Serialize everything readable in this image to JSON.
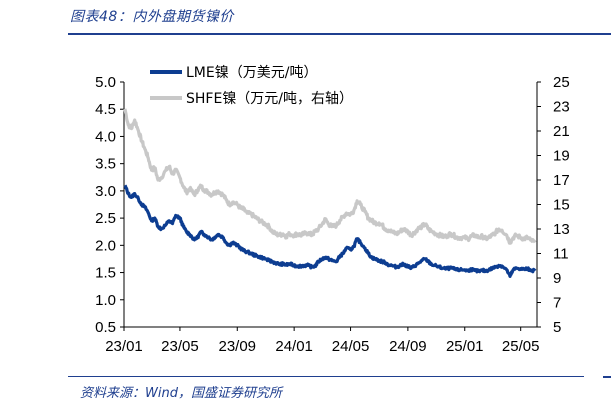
{
  "figure_title": "图表48：内外盘期货镍价",
  "source": "资料来源：Wind，国盛证券研究所",
  "colors": {
    "accent": "#1f3f8f",
    "lme": "#0d3d91",
    "shfe": "#c8c8c8"
  },
  "chart_data": {
    "type": "line",
    "x_tick_labels": [
      "23/01",
      "23/05",
      "23/09",
      "24/01",
      "24/05",
      "24/09",
      "25/01",
      "25/05"
    ],
    "xlim": [
      "2023-01",
      "2025-06"
    ],
    "y_left": {
      "label": "LME镍（万美元/吨）",
      "ylim": [
        0.5,
        5.0
      ],
      "ticks": [
        "0.5",
        "1.0",
        "1.5",
        "2.0",
        "2.5",
        "3.0",
        "3.5",
        "4.0",
        "4.5",
        "5.0"
      ]
    },
    "y_right": {
      "label": "SHFE镍（万元/吨，右轴）",
      "ylim": [
        5,
        25
      ],
      "ticks": [
        "5",
        "7",
        "9",
        "11",
        "13",
        "15",
        "17",
        "19",
        "21",
        "23",
        "25"
      ]
    },
    "legend_position": "top-left",
    "grid": false,
    "series": [
      {
        "name": "LME镍（万美元/吨）",
        "axis": "left",
        "points": [
          [
            "2023-01-03",
            3.1
          ],
          [
            "2023-01-10",
            2.95
          ],
          [
            "2023-01-17",
            2.88
          ],
          [
            "2023-01-24",
            2.95
          ],
          [
            "2023-02-01",
            2.85
          ],
          [
            "2023-02-08",
            2.75
          ],
          [
            "2023-02-15",
            2.7
          ],
          [
            "2023-02-22",
            2.6
          ],
          [
            "2023-03-01",
            2.45
          ],
          [
            "2023-03-08",
            2.5
          ],
          [
            "2023-03-15",
            2.35
          ],
          [
            "2023-03-22",
            2.3
          ],
          [
            "2023-04-01",
            2.38
          ],
          [
            "2023-04-08",
            2.45
          ],
          [
            "2023-04-15",
            2.4
          ],
          [
            "2023-04-22",
            2.55
          ],
          [
            "2023-05-01",
            2.5
          ],
          [
            "2023-05-08",
            2.35
          ],
          [
            "2023-05-15",
            2.25
          ],
          [
            "2023-05-22",
            2.2
          ],
          [
            "2023-06-01",
            2.1
          ],
          [
            "2023-06-08",
            2.15
          ],
          [
            "2023-06-15",
            2.25
          ],
          [
            "2023-06-22",
            2.2
          ],
          [
            "2023-07-01",
            2.15
          ],
          [
            "2023-07-08",
            2.1
          ],
          [
            "2023-07-15",
            2.15
          ],
          [
            "2023-07-22",
            2.2
          ],
          [
            "2023-08-01",
            2.15
          ],
          [
            "2023-08-08",
            2.05
          ],
          [
            "2023-08-15",
            2.0
          ],
          [
            "2023-08-22",
            2.05
          ],
          [
            "2023-09-01",
            2.0
          ],
          [
            "2023-09-08",
            1.95
          ],
          [
            "2023-09-15",
            1.9
          ],
          [
            "2023-09-22",
            1.88
          ],
          [
            "2023-10-01",
            1.85
          ],
          [
            "2023-10-08",
            1.82
          ],
          [
            "2023-10-15",
            1.8
          ],
          [
            "2023-10-22",
            1.78
          ],
          [
            "2023-11-01",
            1.75
          ],
          [
            "2023-11-08",
            1.72
          ],
          [
            "2023-11-15",
            1.7
          ],
          [
            "2023-11-22",
            1.68
          ],
          [
            "2023-12-01",
            1.65
          ],
          [
            "2023-12-08",
            1.66
          ],
          [
            "2023-12-15",
            1.64
          ],
          [
            "2023-12-22",
            1.66
          ],
          [
            "2024-01-01",
            1.63
          ],
          [
            "2024-01-08",
            1.62
          ],
          [
            "2024-01-15",
            1.62
          ],
          [
            "2024-01-22",
            1.63
          ],
          [
            "2024-02-01",
            1.63
          ],
          [
            "2024-02-08",
            1.6
          ],
          [
            "2024-02-15",
            1.62
          ],
          [
            "2024-02-22",
            1.7
          ],
          [
            "2024-03-01",
            1.75
          ],
          [
            "2024-03-08",
            1.78
          ],
          [
            "2024-03-15",
            1.75
          ],
          [
            "2024-03-22",
            1.72
          ],
          [
            "2024-04-01",
            1.7
          ],
          [
            "2024-04-08",
            1.8
          ],
          [
            "2024-04-15",
            1.85
          ],
          [
            "2024-04-22",
            1.95
          ],
          [
            "2024-05-01",
            1.92
          ],
          [
            "2024-05-08",
            1.98
          ],
          [
            "2024-05-15",
            2.12
          ],
          [
            "2024-05-22",
            2.05
          ],
          [
            "2024-06-01",
            1.95
          ],
          [
            "2024-06-08",
            1.85
          ],
          [
            "2024-06-15",
            1.78
          ],
          [
            "2024-06-22",
            1.75
          ],
          [
            "2024-07-01",
            1.72
          ],
          [
            "2024-07-08",
            1.7
          ],
          [
            "2024-07-15",
            1.68
          ],
          [
            "2024-07-22",
            1.64
          ],
          [
            "2024-08-01",
            1.62
          ],
          [
            "2024-08-08",
            1.6
          ],
          [
            "2024-08-15",
            1.63
          ],
          [
            "2024-08-22",
            1.65
          ],
          [
            "2024-09-01",
            1.62
          ],
          [
            "2024-09-08",
            1.58
          ],
          [
            "2024-09-15",
            1.62
          ],
          [
            "2024-09-22",
            1.66
          ],
          [
            "2024-10-01",
            1.72
          ],
          [
            "2024-10-08",
            1.75
          ],
          [
            "2024-10-15",
            1.7
          ],
          [
            "2024-10-22",
            1.65
          ],
          [
            "2024-11-01",
            1.62
          ],
          [
            "2024-11-08",
            1.6
          ],
          [
            "2024-11-15",
            1.58
          ],
          [
            "2024-11-22",
            1.57
          ],
          [
            "2024-12-01",
            1.58
          ],
          [
            "2024-12-08",
            1.57
          ],
          [
            "2024-12-15",
            1.55
          ],
          [
            "2024-12-22",
            1.55
          ],
          [
            "2025-01-01",
            1.55
          ],
          [
            "2025-01-08",
            1.53
          ],
          [
            "2025-01-15",
            1.56
          ],
          [
            "2025-01-22",
            1.54
          ],
          [
            "2025-02-01",
            1.52
          ],
          [
            "2025-02-08",
            1.54
          ],
          [
            "2025-02-15",
            1.53
          ],
          [
            "2025-02-22",
            1.55
          ],
          [
            "2025-03-01",
            1.58
          ],
          [
            "2025-03-08",
            1.6
          ],
          [
            "2025-03-15",
            1.63
          ],
          [
            "2025-03-22",
            1.62
          ],
          [
            "2025-04-01",
            1.55
          ],
          [
            "2025-04-08",
            1.43
          ],
          [
            "2025-04-15",
            1.55
          ],
          [
            "2025-04-22",
            1.58
          ],
          [
            "2025-05-01",
            1.57
          ],
          [
            "2025-05-08",
            1.56
          ],
          [
            "2025-05-15",
            1.57
          ],
          [
            "2025-05-22",
            1.55
          ],
          [
            "2025-06-01",
            1.53
          ]
        ]
      },
      {
        "name": "SHFE镍（万元/吨，右轴）",
        "axis": "right",
        "points": [
          [
            "2023-01-03",
            22.8
          ],
          [
            "2023-01-10",
            21.5
          ],
          [
            "2023-01-17",
            21.2
          ],
          [
            "2023-01-24",
            21.9
          ],
          [
            "2023-02-01",
            21.0
          ],
          [
            "2023-02-08",
            20.2
          ],
          [
            "2023-02-15",
            19.5
          ],
          [
            "2023-02-22",
            18.8
          ],
          [
            "2023-03-01",
            17.8
          ],
          [
            "2023-03-08",
            18.0
          ],
          [
            "2023-03-15",
            17.0
          ],
          [
            "2023-03-22",
            17.2
          ],
          [
            "2023-04-01",
            17.8
          ],
          [
            "2023-04-08",
            18.1
          ],
          [
            "2023-04-15",
            17.5
          ],
          [
            "2023-04-22",
            17.8
          ],
          [
            "2023-05-01",
            17.2
          ],
          [
            "2023-05-08",
            16.5
          ],
          [
            "2023-05-15",
            16.0
          ],
          [
            "2023-05-22",
            16.3
          ],
          [
            "2023-06-01",
            15.8
          ],
          [
            "2023-06-08",
            16.2
          ],
          [
            "2023-06-15",
            16.5
          ],
          [
            "2023-06-22",
            16.2
          ],
          [
            "2023-07-01",
            16.0
          ],
          [
            "2023-07-08",
            15.8
          ],
          [
            "2023-07-15",
            16.0
          ],
          [
            "2023-07-22",
            16.1
          ],
          [
            "2023-08-01",
            15.8
          ],
          [
            "2023-08-08",
            15.4
          ],
          [
            "2023-08-15",
            15.0
          ],
          [
            "2023-08-22",
            15.2
          ],
          [
            "2023-09-01",
            15.0
          ],
          [
            "2023-09-08",
            14.7
          ],
          [
            "2023-09-15",
            14.6
          ],
          [
            "2023-09-22",
            14.3
          ],
          [
            "2023-10-01",
            14.2
          ],
          [
            "2023-10-08",
            14.0
          ],
          [
            "2023-10-15",
            13.8
          ],
          [
            "2023-10-22",
            13.6
          ],
          [
            "2023-11-01",
            13.4
          ],
          [
            "2023-11-08",
            13.2
          ],
          [
            "2023-11-15",
            12.8
          ],
          [
            "2023-11-22",
            12.6
          ],
          [
            "2023-12-01",
            12.5
          ],
          [
            "2023-12-08",
            12.6
          ],
          [
            "2023-12-15",
            12.4
          ],
          [
            "2023-12-22",
            12.6
          ],
          [
            "2024-01-01",
            12.5
          ],
          [
            "2024-01-08",
            12.6
          ],
          [
            "2024-01-15",
            12.5
          ],
          [
            "2024-01-22",
            12.6
          ],
          [
            "2024-02-01",
            12.7
          ],
          [
            "2024-02-08",
            12.5
          ],
          [
            "2024-02-15",
            12.8
          ],
          [
            "2024-02-22",
            13.0
          ],
          [
            "2024-03-01",
            13.4
          ],
          [
            "2024-03-08",
            13.8
          ],
          [
            "2024-03-15",
            13.4
          ],
          [
            "2024-03-22",
            13.2
          ],
          [
            "2024-04-01",
            13.3
          ],
          [
            "2024-04-08",
            13.7
          ],
          [
            "2024-04-15",
            14.0
          ],
          [
            "2024-04-22",
            14.3
          ],
          [
            "2024-05-01",
            14.2
          ],
          [
            "2024-05-08",
            14.5
          ],
          [
            "2024-05-15",
            15.3
          ],
          [
            "2024-05-22",
            15.0
          ],
          [
            "2024-06-01",
            14.4
          ],
          [
            "2024-06-08",
            13.9
          ],
          [
            "2024-06-15",
            13.7
          ],
          [
            "2024-06-22",
            13.5
          ],
          [
            "2024-07-01",
            13.5
          ],
          [
            "2024-07-08",
            13.3
          ],
          [
            "2024-07-15",
            13.0
          ],
          [
            "2024-07-22",
            12.9
          ],
          [
            "2024-08-01",
            12.7
          ],
          [
            "2024-08-08",
            12.6
          ],
          [
            "2024-08-15",
            12.8
          ],
          [
            "2024-08-22",
            13.0
          ],
          [
            "2024-09-01",
            12.8
          ],
          [
            "2024-09-08",
            12.5
          ],
          [
            "2024-09-15",
            12.7
          ],
          [
            "2024-09-22",
            13.0
          ],
          [
            "2024-10-01",
            13.2
          ],
          [
            "2024-10-08",
            13.4
          ],
          [
            "2024-10-15",
            13.0
          ],
          [
            "2024-10-22",
            12.8
          ],
          [
            "2024-11-01",
            12.6
          ],
          [
            "2024-11-08",
            12.5
          ],
          [
            "2024-11-15",
            12.4
          ],
          [
            "2024-11-22",
            12.4
          ],
          [
            "2024-12-01",
            12.6
          ],
          [
            "2024-12-08",
            12.5
          ],
          [
            "2024-12-15",
            12.3
          ],
          [
            "2024-12-22",
            12.3
          ],
          [
            "2025-01-01",
            12.3
          ],
          [
            "2025-01-08",
            12.2
          ],
          [
            "2025-01-15",
            12.4
          ],
          [
            "2025-01-22",
            12.5
          ],
          [
            "2025-02-01",
            12.3
          ],
          [
            "2025-02-08",
            12.4
          ],
          [
            "2025-02-15",
            12.2
          ],
          [
            "2025-02-22",
            12.3
          ],
          [
            "2025-03-01",
            12.5
          ],
          [
            "2025-03-08",
            12.7
          ],
          [
            "2025-03-15",
            13.0
          ],
          [
            "2025-03-22",
            12.9
          ],
          [
            "2025-04-01",
            12.5
          ],
          [
            "2025-04-08",
            11.9
          ],
          [
            "2025-04-15",
            12.3
          ],
          [
            "2025-04-22",
            12.5
          ],
          [
            "2025-05-01",
            12.3
          ],
          [
            "2025-05-08",
            12.2
          ],
          [
            "2025-05-15",
            12.3
          ],
          [
            "2025-05-22",
            12.1
          ],
          [
            "2025-06-01",
            11.9
          ]
        ]
      }
    ]
  }
}
